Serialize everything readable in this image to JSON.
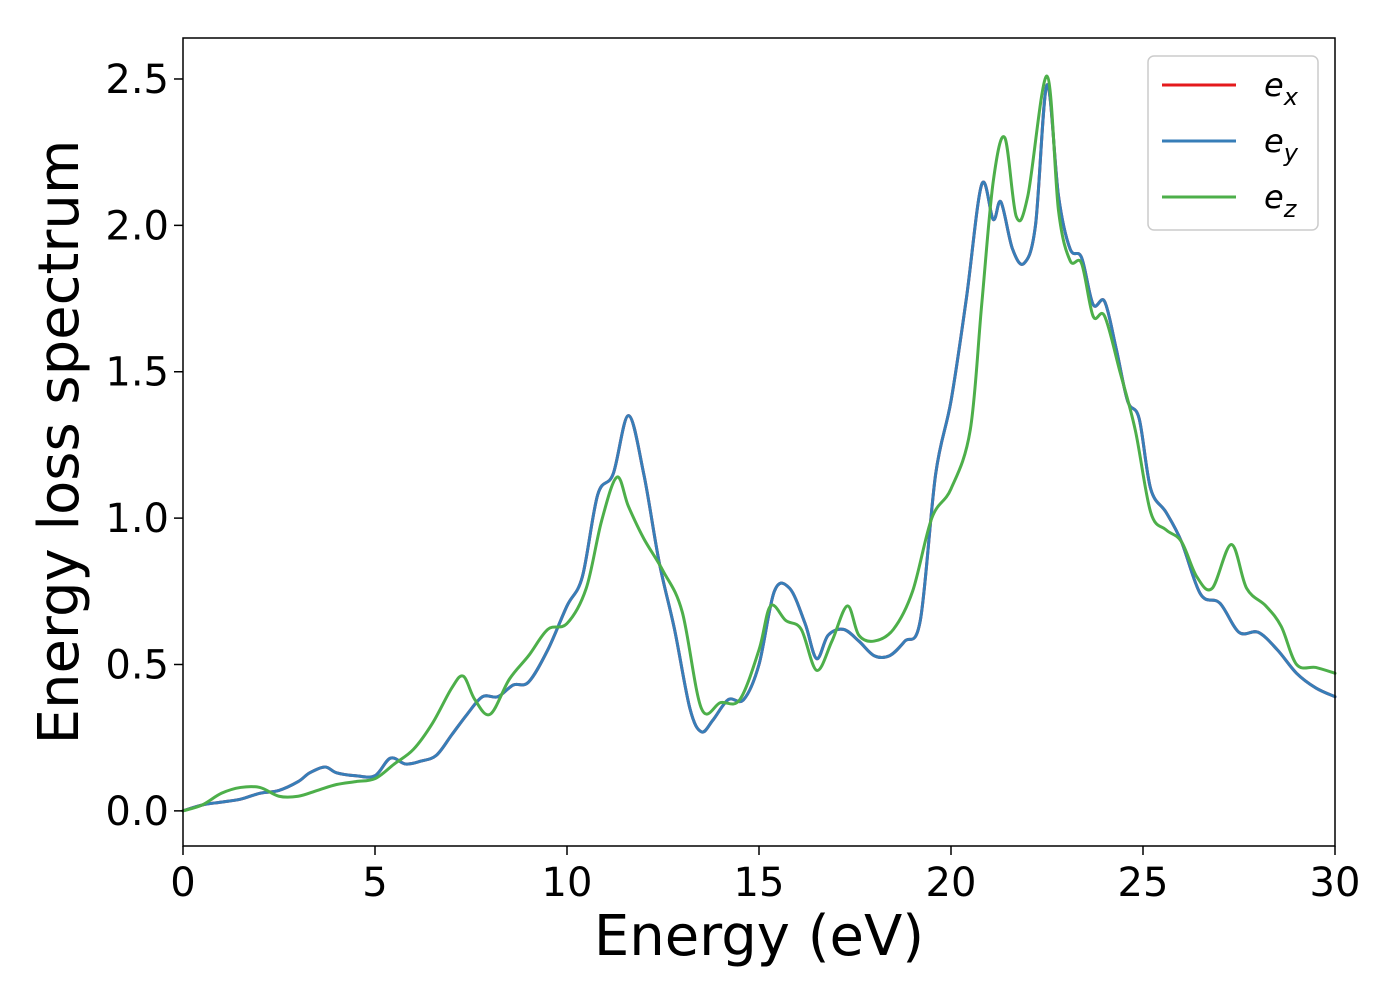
{
  "chart_data": {
    "type": "line",
    "xlabel": "Energy (eV)",
    "ylabel": "Energy loss spectrum",
    "xlim": [
      0,
      30
    ],
    "ylim": [
      -0.12,
      2.64
    ],
    "xticks": [
      "0",
      "5",
      "10",
      "15",
      "20",
      "25",
      "30"
    ],
    "yticks": [
      "0.0",
      "0.5",
      "1.0",
      "1.5",
      "2.0",
      "2.5"
    ],
    "grid": false,
    "legend_position": "top-right",
    "legend": [
      {
        "base": "e",
        "sub": "x",
        "color": "#e41a1c"
      },
      {
        "base": "e",
        "sub": "y",
        "color": "#377eb8"
      },
      {
        "base": "e",
        "sub": "z",
        "color": "#4daf4a"
      }
    ],
    "series": [
      {
        "name": "e_x",
        "color": "#e41a1c",
        "x": [
          0,
          0.5,
          1,
          1.5,
          2,
          2.5,
          3,
          3.3,
          3.7,
          4,
          4.5,
          5,
          5.4,
          5.8,
          6.2,
          6.6,
          7,
          7.4,
          7.8,
          8.2,
          8.6,
          9,
          9.5,
          10,
          10.4,
          10.8,
          11.2,
          11.6,
          12,
          12.4,
          12.8,
          13.2,
          13.5,
          13.8,
          14.2,
          14.6,
          15,
          15.4,
          15.8,
          16.2,
          16.5,
          16.8,
          17.2,
          17.6,
          18,
          18.4,
          18.8,
          19.2,
          19.6,
          20,
          20.4,
          20.8,
          21.1,
          21.3,
          21.6,
          21.9,
          22.2,
          22.5,
          22.8,
          23.1,
          23.4,
          23.7,
          24,
          24.3,
          24.6,
          24.9,
          25.2,
          25.6,
          26,
          26.5,
          27,
          27.5,
          28,
          28.5,
          29,
          29.5,
          30
        ],
        "y": [
          0,
          0.02,
          0.03,
          0.04,
          0.06,
          0.07,
          0.1,
          0.13,
          0.15,
          0.13,
          0.12,
          0.12,
          0.18,
          0.16,
          0.17,
          0.19,
          0.26,
          0.33,
          0.39,
          0.39,
          0.43,
          0.44,
          0.55,
          0.7,
          0.8,
          1.08,
          1.15,
          1.35,
          1.15,
          0.85,
          0.62,
          0.35,
          0.27,
          0.31,
          0.38,
          0.38,
          0.5,
          0.75,
          0.76,
          0.64,
          0.52,
          0.6,
          0.62,
          0.58,
          0.53,
          0.53,
          0.58,
          0.65,
          1.15,
          1.4,
          1.75,
          2.14,
          2.02,
          2.08,
          1.92,
          1.87,
          2.0,
          2.48,
          2.1,
          1.92,
          1.89,
          1.73,
          1.74,
          1.58,
          1.4,
          1.34,
          1.1,
          1.02,
          0.92,
          0.74,
          0.71,
          0.61,
          0.61,
          0.55,
          0.47,
          0.42,
          0.39
        ]
      },
      {
        "name": "e_y",
        "color": "#377eb8",
        "x": [
          0,
          0.5,
          1,
          1.5,
          2,
          2.5,
          3,
          3.3,
          3.7,
          4,
          4.5,
          5,
          5.4,
          5.8,
          6.2,
          6.6,
          7,
          7.4,
          7.8,
          8.2,
          8.6,
          9,
          9.5,
          10,
          10.4,
          10.8,
          11.2,
          11.6,
          12,
          12.4,
          12.8,
          13.2,
          13.5,
          13.8,
          14.2,
          14.6,
          15,
          15.4,
          15.8,
          16.2,
          16.5,
          16.8,
          17.2,
          17.6,
          18,
          18.4,
          18.8,
          19.2,
          19.6,
          20,
          20.4,
          20.8,
          21.1,
          21.3,
          21.6,
          21.9,
          22.2,
          22.5,
          22.8,
          23.1,
          23.4,
          23.7,
          24,
          24.3,
          24.6,
          24.9,
          25.2,
          25.6,
          26,
          26.5,
          27,
          27.5,
          28,
          28.5,
          29,
          29.5,
          30
        ],
        "y": [
          0,
          0.02,
          0.03,
          0.04,
          0.06,
          0.07,
          0.1,
          0.13,
          0.15,
          0.13,
          0.12,
          0.12,
          0.18,
          0.16,
          0.17,
          0.19,
          0.26,
          0.33,
          0.39,
          0.39,
          0.43,
          0.44,
          0.55,
          0.7,
          0.8,
          1.08,
          1.15,
          1.35,
          1.15,
          0.85,
          0.62,
          0.35,
          0.27,
          0.31,
          0.38,
          0.38,
          0.5,
          0.75,
          0.76,
          0.64,
          0.52,
          0.6,
          0.62,
          0.58,
          0.53,
          0.53,
          0.58,
          0.65,
          1.15,
          1.4,
          1.75,
          2.14,
          2.02,
          2.08,
          1.92,
          1.87,
          2.0,
          2.48,
          2.1,
          1.92,
          1.89,
          1.73,
          1.74,
          1.58,
          1.4,
          1.34,
          1.1,
          1.02,
          0.92,
          0.74,
          0.71,
          0.61,
          0.61,
          0.55,
          0.47,
          0.42,
          0.39
        ]
      },
      {
        "name": "e_z",
        "color": "#4daf4a",
        "x": [
          0,
          0.5,
          1,
          1.5,
          2,
          2.5,
          3,
          3.5,
          4,
          4.5,
          5,
          5.5,
          6,
          6.5,
          7,
          7.3,
          7.6,
          8,
          8.5,
          9,
          9.5,
          10,
          10.5,
          10.9,
          11.3,
          11.6,
          12,
          12.5,
          13,
          13.5,
          14,
          14.5,
          15,
          15.3,
          15.7,
          16.1,
          16.5,
          16.9,
          17.3,
          17.6,
          18,
          18.5,
          19,
          19.5,
          20,
          20.5,
          20.8,
          21.1,
          21.4,
          21.7,
          22,
          22.5,
          22.8,
          23.1,
          23.4,
          23.7,
          24,
          24.4,
          24.8,
          25.2,
          25.6,
          26,
          26.4,
          26.8,
          27.3,
          27.7,
          28.2,
          28.6,
          29,
          29.5,
          30
        ],
        "y": [
          0,
          0.02,
          0.06,
          0.08,
          0.08,
          0.05,
          0.05,
          0.07,
          0.09,
          0.1,
          0.11,
          0.16,
          0.21,
          0.3,
          0.42,
          0.46,
          0.38,
          0.33,
          0.45,
          0.53,
          0.62,
          0.64,
          0.76,
          0.99,
          1.14,
          1.04,
          0.93,
          0.82,
          0.68,
          0.35,
          0.37,
          0.38,
          0.55,
          0.7,
          0.65,
          0.62,
          0.48,
          0.58,
          0.7,
          0.6,
          0.58,
          0.62,
          0.75,
          1.0,
          1.1,
          1.3,
          1.73,
          2.15,
          2.3,
          2.03,
          2.1,
          2.51,
          2.05,
          1.88,
          1.87,
          1.69,
          1.69,
          1.5,
          1.3,
          1.02,
          0.96,
          0.92,
          0.8,
          0.76,
          0.91,
          0.76,
          0.7,
          0.63,
          0.5,
          0.49,
          0.47
        ]
      }
    ]
  }
}
